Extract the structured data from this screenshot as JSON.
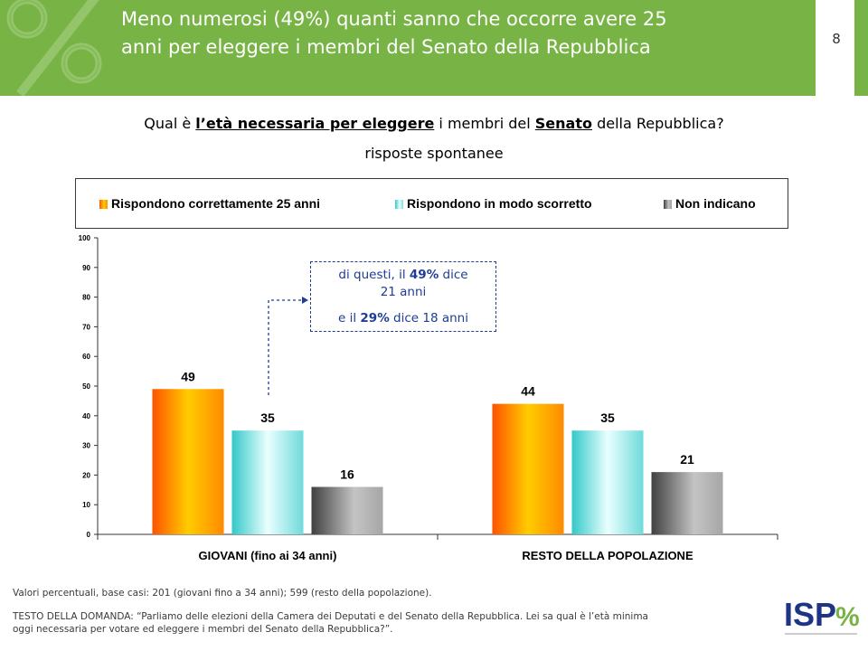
{
  "slide": {
    "title_lines": [
      "Meno numerosi (49%) quanti sanno che occorre avere 25",
      "anni per eleggere i membri del Senato della Repubblica"
    ],
    "page_number": "8",
    "question": {
      "part1": "Qual è ",
      "part2_emph": "l’età necessaria per eleggere",
      "part3": " i membri del ",
      "part4_emph": "Senato",
      "part5": " della Repubblica?"
    },
    "subtitle": "risposte spontanee",
    "footer": {
      "note": "Valori percentuali, base casi: 201 (giovani fino a 34 anni); 599 (resto della popolazione).",
      "question_text_lines": [
        "TESTO DELLA DOMANDA: “Parliamo delle elezioni della Camera dei Deputati e del Senato della Repubblica. Lei sa qual è l’età minima",
        "oggi necessaria per votare ed eleggere i membri del Senato della Repubblica?”."
      ]
    },
    "logo": {
      "letters": "ISP",
      "mark": "%"
    },
    "colors": {
      "header_green": "#78B346",
      "annotation_blue": "#1F3C96",
      "logo_navy": "#1D3584"
    },
    "icons": {
      "watermark": "percent-watermark-icon",
      "arrow": "dashed-arrow-icon"
    }
  },
  "chart_data": {
    "type": "bar",
    "categories": [
      "GIOVANI (fino ai 34 anni)",
      "RESTO DELLA POPOLAZIONE"
    ],
    "series": [
      {
        "name": "Rispondono correttamente 25 anni",
        "values": [
          49,
          44
        ],
        "color": "#FF9900"
      },
      {
        "name": "Rispondono in modo scorretto",
        "values": [
          35,
          35
        ],
        "color": "#66D9D9"
      },
      {
        "name": "Non indicano",
        "values": [
          16,
          21
        ],
        "color": "#808080"
      }
    ],
    "ylim": [
      0,
      100
    ],
    "yticks": [
      0,
      10,
      20,
      30,
      40,
      50,
      60,
      70,
      80,
      90,
      100
    ],
    "xlabel": "",
    "ylabel": "",
    "grid": false,
    "legend": "top",
    "data_labels": true,
    "annotation": {
      "line1": {
        "pre": "di questi, il ",
        "pct": "49%",
        "post": " dice"
      },
      "line2": "21 anni",
      "line3": {
        "pre": "e il ",
        "pct": "29%",
        "mid": " dice ",
        "age": "18 anni"
      }
    }
  }
}
